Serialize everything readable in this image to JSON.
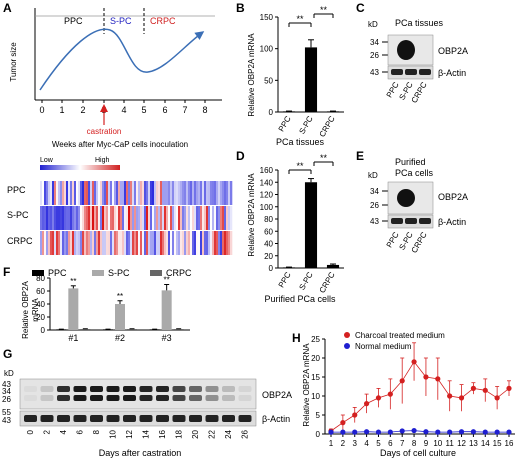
{
  "panel_letters": [
    "A",
    "B",
    "C",
    "D",
    "E",
    "F",
    "G",
    "H"
  ],
  "colors": {
    "ppc": "#000000",
    "spc": "#aaaaaa",
    "crpc": "#666666",
    "red": "#d42020",
    "blue": "#1f1fd0",
    "curve": "#3b6fb6"
  },
  "panel_a": {
    "ylabel": "Tumor size",
    "phases": [
      "PPC",
      "S-PC",
      "CRPC"
    ],
    "x_ticks": [
      "0",
      "1",
      "2",
      "3",
      "4",
      "5",
      "6",
      "7",
      "8"
    ],
    "arrow_label": "castration",
    "xlabel": "Weeks after Myc-CaP cells inoculation",
    "legend_low": "Low",
    "legend_high": "High",
    "rows": [
      "PPC",
      "S-PC",
      "CRPC"
    ]
  },
  "panel_b": {
    "ylabel": "Relative OBP2A mRNA",
    "xlabel": "PCa tissues",
    "sig": [
      "**",
      "**"
    ]
  },
  "panel_c": {
    "title": "PCa tissues",
    "kd": "kD",
    "markers": [
      "34",
      "26",
      "43"
    ],
    "bands": [
      "OBP2A",
      "β-Actin"
    ]
  },
  "panel_d": {
    "ylabel": "Relative OBP2A mRNA",
    "xlabel": "Purified PCa cells",
    "sig": [
      "**",
      "**"
    ]
  },
  "panel_e": {
    "title_line1": "Purified",
    "title_line2": "PCa cells",
    "kd": "kD",
    "markers": [
      "34",
      "26",
      "43"
    ],
    "bands": [
      "OBP2A",
      "β-Actin"
    ]
  },
  "panel_f": {
    "ylabel_line1": "Relative OBP2A",
    "ylabel_line2": "mRNA",
    "sig": [
      "**",
      "**",
      "**"
    ]
  },
  "panel_g": {
    "kd": "kD",
    "markers_top": [
      "43",
      "34",
      "26"
    ],
    "markers_bottom": [
      "55",
      "43"
    ],
    "bands": [
      "OBP2A",
      "β-Actin"
    ],
    "xlabel": "Days after castration"
  },
  "panel_h": {
    "ylabel": "Relative OBP2A mRNA",
    "xlabel": "Days of cell culture"
  },
  "chart_data": [
    {
      "type": "line",
      "panel": "A",
      "x_ticks": [
        0,
        1,
        2,
        3,
        4,
        5,
        6,
        7,
        8
      ],
      "xlabel": "Weeks after Myc-CaP cells inoculation",
      "ylabel": "Tumor size",
      "phase_labels": [
        "PPC",
        "S-PC",
        "CRPC"
      ]
    },
    {
      "type": "bar",
      "panel": "B",
      "categories": [
        "PPC",
        "S-PC",
        "CRPC"
      ],
      "values": [
        1,
        102,
        1
      ],
      "errors": [
        0.5,
        12,
        0.5
      ],
      "y_ticks": [
        0,
        50,
        100,
        150
      ],
      "ylim": [
        0,
        150
      ],
      "ylabel": "Relative OBP2A mRNA",
      "xlabel": "PCa tissues"
    },
    {
      "type": "bar",
      "panel": "D",
      "categories": [
        "PPC",
        "S-PC",
        "CRPC"
      ],
      "values": [
        1,
        140,
        5
      ],
      "errors": [
        0.5,
        6,
        1.5
      ],
      "y_ticks": [
        0,
        20,
        40,
        60,
        80,
        100,
        120,
        140,
        160
      ],
      "ylim": [
        0,
        160
      ],
      "ylabel": "Relative OBP2A mRNA",
      "xlabel": "Purified PCa cells"
    },
    {
      "type": "bar",
      "panel": "F",
      "categories": [
        "#1",
        "#2",
        "#3"
      ],
      "series": [
        {
          "name": "PPC",
          "values": [
            1,
            1,
            1
          ],
          "errors": [
            0.3,
            0.3,
            0.3
          ]
        },
        {
          "name": "S-PC",
          "values": [
            64,
            40,
            61
          ],
          "errors": [
            4,
            5,
            9
          ]
        },
        {
          "name": "CRPC",
          "values": [
            1.5,
            1.5,
            1.5
          ],
          "errors": [
            0.4,
            0.4,
            0.4
          ]
        }
      ],
      "y_ticks": [
        0,
        20,
        40,
        60,
        80
      ],
      "ylim": [
        0,
        80
      ],
      "ylabel": "Relative OBP2A mRNA"
    },
    {
      "type": "line",
      "panel": "H",
      "x": [
        1,
        2,
        3,
        4,
        5,
        6,
        7,
        8,
        9,
        10,
        11,
        12,
        13,
        14,
        15,
        16
      ],
      "series": [
        {
          "name": "Charcoal treated medium",
          "values": [
            0.8,
            3,
            5,
            8,
            9.5,
            10.5,
            14,
            19,
            15,
            14.5,
            10,
            9.5,
            12,
            11.5,
            9.5,
            12
          ],
          "errors": [
            0.5,
            2,
            2,
            2.5,
            2.5,
            4,
            6,
            5,
            5,
            5.5,
            4,
            3.5,
            1.5,
            3,
            3,
            2
          ]
        },
        {
          "name": "Normal medium",
          "values": [
            0.5,
            0.5,
            0.5,
            0.6,
            0.5,
            0.5,
            0.8,
            0.9,
            0.6,
            0.5,
            0.5,
            0.6,
            0.6,
            0.5,
            0.5,
            0.5
          ],
          "errors": [
            0.2,
            0.2,
            0.2,
            0.2,
            0.2,
            0.2,
            0.3,
            0.3,
            0.2,
            0.2,
            0.2,
            0.2,
            0.2,
            0.2,
            0.2,
            0.2
          ]
        }
      ],
      "y_ticks": [
        0,
        5,
        10,
        15,
        20,
        25
      ],
      "ylim": [
        0,
        25
      ],
      "ylabel": "Relative OBP2A mRNA",
      "xlabel": "Days of cell culture"
    }
  ]
}
